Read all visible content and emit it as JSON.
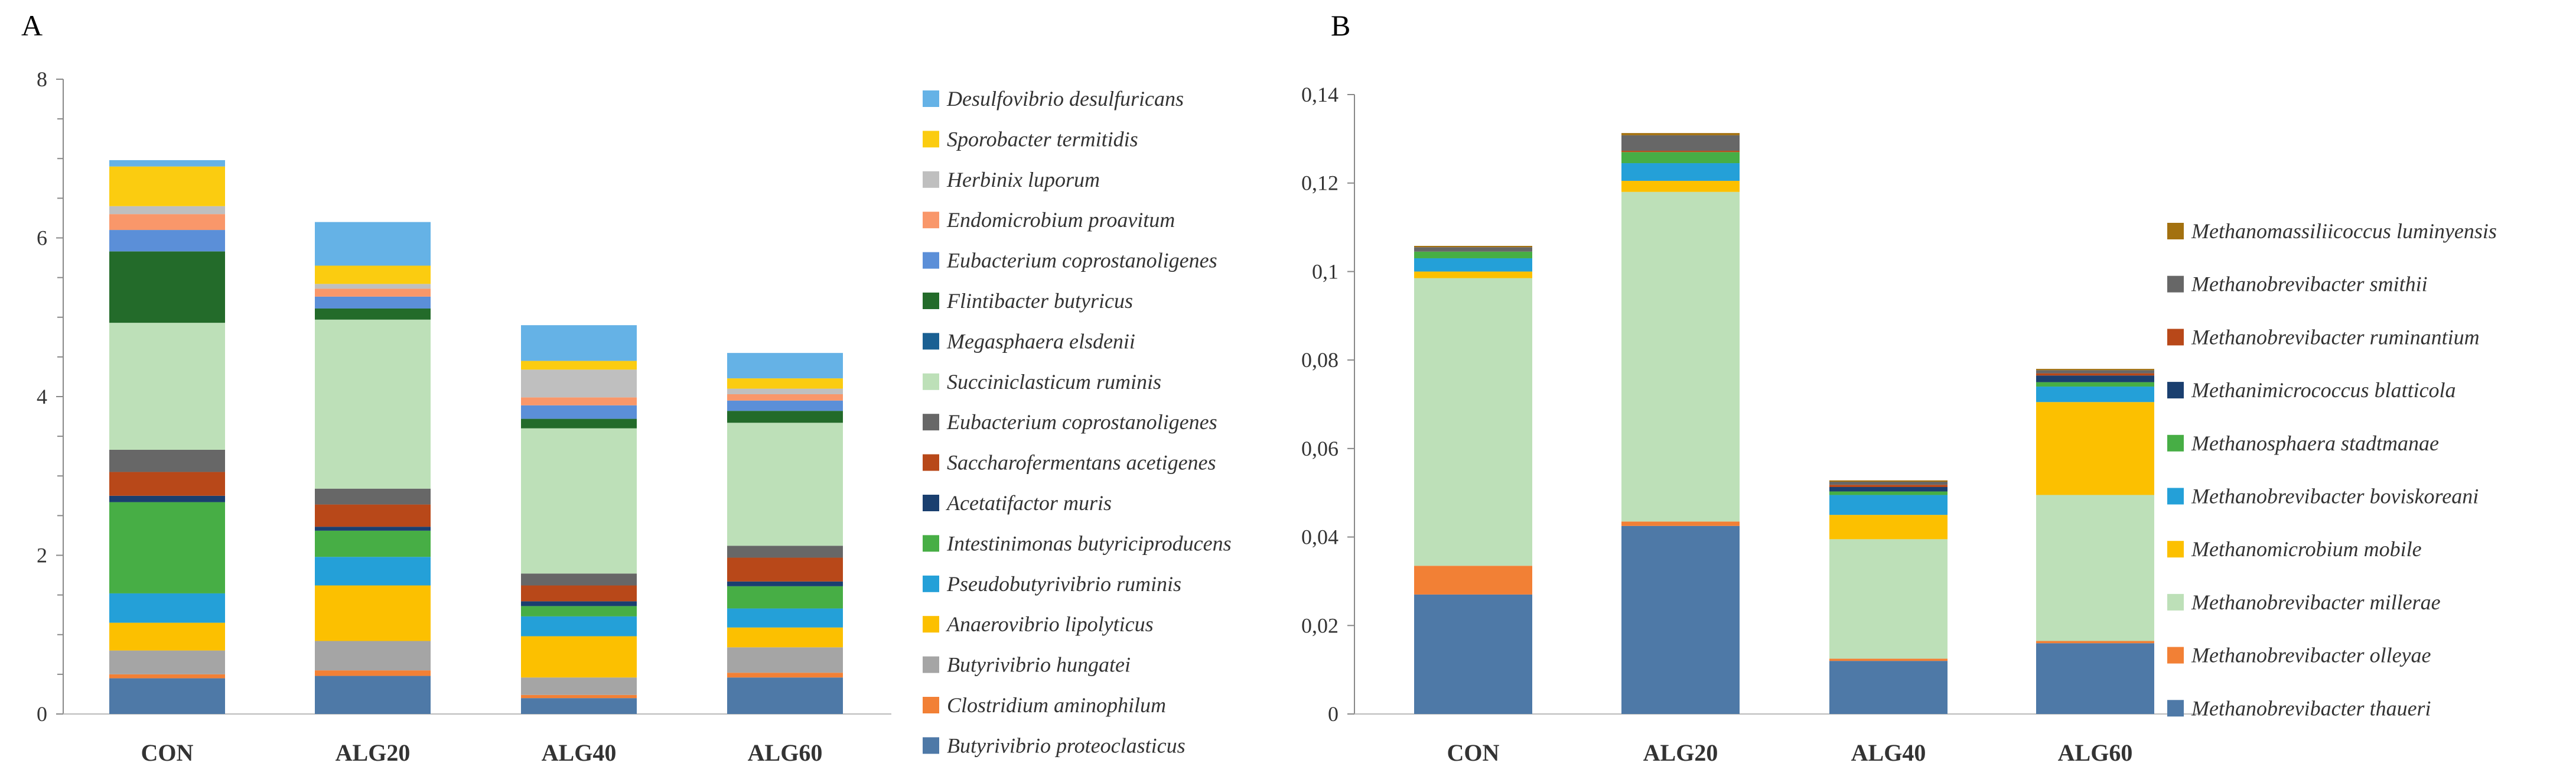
{
  "chart_data": [
    {
      "panel": "A",
      "type": "stacked-bar",
      "title": "",
      "xlabel": "",
      "ylabel": "",
      "categories": [
        "CON",
        "ALG20",
        "ALG40",
        "ALG60"
      ],
      "ylim": [
        0,
        8
      ],
      "yticks": [
        0,
        2,
        4,
        6,
        8
      ],
      "ytick_labels": [
        "0",
        "2",
        "4",
        "6",
        "8"
      ],
      "series": [
        {
          "name": "Butyrivibrio proteoclasticus",
          "color": "#4e79a7",
          "values": [
            0.45,
            0.48,
            0.2,
            0.46
          ]
        },
        {
          "name": "Clostridium aminophilum",
          "color": "#f28035",
          "values": [
            0.05,
            0.07,
            0.04,
            0.06
          ]
        },
        {
          "name": "Butyrivibrio hungatei",
          "color": "#a5a5a5",
          "values": [
            0.3,
            0.37,
            0.22,
            0.32
          ]
        },
        {
          "name": "Anaerovibrio lipolyticus",
          "color": "#fcc000",
          "values": [
            0.35,
            0.7,
            0.52,
            0.25
          ]
        },
        {
          "name": "Pseudobutyrivibrio ruminis",
          "color": "#24a0d8",
          "values": [
            0.37,
            0.36,
            0.25,
            0.24
          ]
        },
        {
          "name": "Intestinimonas butyriciproducens",
          "color": "#47ae45",
          "values": [
            1.15,
            0.33,
            0.13,
            0.28
          ]
        },
        {
          "name": "Acetatifactor muris",
          "color": "#1a3f6f",
          "values": [
            0.08,
            0.05,
            0.06,
            0.06
          ]
        },
        {
          "name": "Saccharofermentans acetigenes",
          "color": "#b84819",
          "values": [
            0.3,
            0.28,
            0.2,
            0.3
          ]
        },
        {
          "name": "Eubacterium coprostanoligenes",
          "color": "#676767",
          "values": [
            0.28,
            0.2,
            0.15,
            0.15
          ]
        },
        {
          "name": "Succiniclasticum ruminis",
          "color": "#bde0b8",
          "values": [
            1.6,
            2.13,
            1.83,
            1.55
          ]
        },
        {
          "name": "Megasphaera elsdenii",
          "color": "#1a6093",
          "values": [
            0.0,
            0.0,
            0.0,
            0.0
          ]
        },
        {
          "name": "Flintibacter butyricus",
          "color": "#236b2a",
          "values": [
            0.9,
            0.14,
            0.12,
            0.15
          ]
        },
        {
          "name": "Eubacterium coprostanoligenes",
          "color": "#5b8fd8",
          "values": [
            0.27,
            0.15,
            0.17,
            0.13
          ]
        },
        {
          "name": "Endomicrobium proavitum",
          "color": "#f9976a",
          "values": [
            0.2,
            0.1,
            0.1,
            0.08
          ]
        },
        {
          "name": "Herbinix luporum",
          "color": "#bfbfbf",
          "values": [
            0.1,
            0.06,
            0.35,
            0.07
          ]
        },
        {
          "name": "Sporobacter termitidis",
          "color": "#fbcc10",
          "values": [
            0.5,
            0.23,
            0.11,
            0.13
          ]
        },
        {
          "name": "Desulfovibrio desulfuricans",
          "color": "#65b2e6",
          "values": [
            0.08,
            0.55,
            0.45,
            0.32
          ]
        }
      ]
    },
    {
      "panel": "B",
      "type": "stacked-bar",
      "title": "",
      "xlabel": "",
      "ylabel": "",
      "categories": [
        "CON",
        "ALG20",
        "ALG40",
        "ALG60"
      ],
      "ylim": [
        0,
        0.14
      ],
      "yticks": [
        0,
        0.02,
        0.04,
        0.06,
        0.08,
        0.1,
        0.12,
        0.14
      ],
      "ytick_labels": [
        "0",
        "0,02",
        "0,04",
        "0,06",
        "0,08",
        "0,1",
        "0,12",
        "0,14"
      ],
      "series": [
        {
          "name": "Methanobrevibacter thaueri",
          "color": "#4e79a7",
          "values": [
            0.027,
            0.0425,
            0.012,
            0.016
          ]
        },
        {
          "name": "Methanobrevibacter olleyae",
          "color": "#f28035",
          "values": [
            0.0065,
            0.001,
            0.0005,
            0.0005
          ]
        },
        {
          "name": "Methanobrevibacter millerae",
          "color": "#bde0b8",
          "values": [
            0.065,
            0.0745,
            0.027,
            0.033
          ]
        },
        {
          "name": "Methanomicrobium mobile",
          "color": "#fcc000",
          "values": [
            0.0015,
            0.0025,
            0.0055,
            0.021
          ]
        },
        {
          "name": "Methanobrevibacter boviskoreani",
          "color": "#24a0d8",
          "values": [
            0.003,
            0.004,
            0.0045,
            0.0035
          ]
        },
        {
          "name": "Methanosphaera stadtmanae",
          "color": "#47ae45",
          "values": [
            0.0015,
            0.0025,
            0.0008,
            0.001
          ]
        },
        {
          "name": "Methanimicrococcus blatticola",
          "color": "#1a3f6f",
          "values": [
            0.0,
            0.0,
            0.001,
            0.0015
          ]
        },
        {
          "name": "Methanobrevibacter ruminantium",
          "color": "#b84819",
          "values": [
            0.0,
            0.0003,
            0.0005,
            0.0005
          ]
        },
        {
          "name": "Methanobrevibacter smithii",
          "color": "#676767",
          "values": [
            0.001,
            0.0035,
            0.0007,
            0.0007
          ]
        },
        {
          "name": "Methanomassiliicoccus luminyensis",
          "color": "#a37110",
          "values": [
            0.0003,
            0.0005,
            0.0003,
            0.0003
          ]
        }
      ]
    }
  ]
}
